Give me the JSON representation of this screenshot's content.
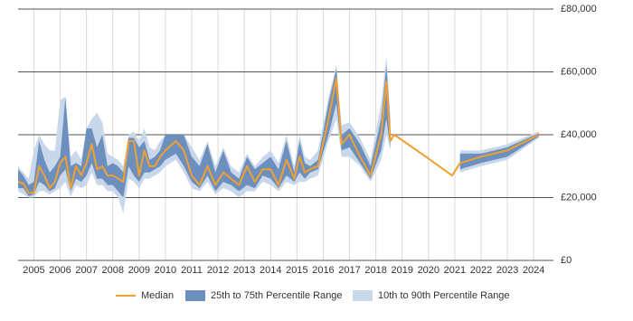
{
  "chart_data": {
    "type": "line",
    "x": [
      2004.4,
      2004.6,
      2004.8,
      2005.0,
      2005.2,
      2005.4,
      2005.6,
      2005.8,
      2006.0,
      2006.2,
      2006.4,
      2006.6,
      2006.8,
      2007.0,
      2007.2,
      2007.4,
      2007.6,
      2007.8,
      2008.0,
      2008.2,
      2008.4,
      2008.6,
      2008.8,
      2009.0,
      2009.2,
      2009.4,
      2009.6,
      2009.8,
      2010.0,
      2010.4,
      2010.7,
      2011.0,
      2011.3,
      2011.6,
      2011.9,
      2012.2,
      2012.5,
      2012.8,
      2013.1,
      2013.4,
      2013.7,
      2014.0,
      2014.3,
      2014.6,
      2014.9,
      2015.1,
      2015.3,
      2015.5,
      2015.8,
      2016.2,
      2016.5,
      2016.7,
      2017.0,
      2017.4,
      2017.8,
      2018.2,
      2018.4,
      2018.55,
      2018.7,
      2019.9,
      2020.9,
      2021.2,
      2022.0,
      2023.0,
      2024.2
    ],
    "series": [
      {
        "name": "Median",
        "color": "#f0a030",
        "values": [
          25000,
          24500,
          21500,
          21500,
          30000,
          27000,
          23000,
          25000,
          31000,
          33000,
          23000,
          30000,
          27000,
          31000,
          37000,
          29000,
          30000,
          27000,
          27000,
          26000,
          25000,
          38000,
          38000,
          27000,
          35000,
          30000,
          30000,
          33000,
          35000,
          38000,
          35000,
          27000,
          24000,
          30000,
          24000,
          28000,
          26000,
          24000,
          30000,
          25000,
          29000,
          29000,
          24000,
          32000,
          26000,
          33000,
          28000,
          29000,
          30000,
          45000,
          58000,
          37000,
          40000,
          33000,
          27000,
          40000,
          57000,
          38000,
          40000,
          33000,
          27000,
          31000,
          33000,
          35000,
          40000
        ]
      },
      {
        "name": "25th to 75th Percentile Range",
        "color": "#6d8fbe",
        "low": [
          23000,
          23000,
          20500,
          21000,
          25000,
          24000,
          22000,
          23000,
          27000,
          29000,
          22000,
          26000,
          25000,
          27000,
          31000,
          26000,
          26000,
          24000,
          24000,
          22000,
          20000,
          30000,
          27000,
          25000,
          28000,
          28000,
          29000,
          30000,
          32000,
          34000,
          30000,
          25000,
          23000,
          27000,
          22000,
          25000,
          24000,
          22000,
          24000,
          23000,
          27000,
          26000,
          23000,
          27000,
          25000,
          28000,
          26000,
          28000,
          29000,
          40000,
          50000,
          35000,
          36000,
          31000,
          26000,
          35000,
          45000,
          36000,
          null,
          null,
          null,
          29000,
          31000,
          33000,
          39500
        ],
        "high": [
          29000,
          27000,
          24000,
          25000,
          38000,
          32000,
          28000,
          30000,
          33000,
          52000,
          30000,
          31000,
          30000,
          42000,
          42000,
          36000,
          40000,
          30000,
          31000,
          30000,
          28000,
          39000,
          39000,
          36000,
          38000,
          32000,
          33000,
          35000,
          40000,
          40000,
          40000,
          33000,
          30000,
          37000,
          28000,
          35000,
          28000,
          26000,
          33000,
          29000,
          31000,
          33000,
          29000,
          38000,
          28000,
          38000,
          31000,
          30000,
          32000,
          50000,
          61000,
          40000,
          42000,
          37000,
          30000,
          45000,
          62000,
          44000,
          null,
          null,
          null,
          34000,
          34000,
          36000,
          40500
        ]
      },
      {
        "name": "10th to 90th Percentile Range",
        "color": "#c8d8ea",
        "low": [
          22000,
          21000,
          20000,
          20000,
          22000,
          22000,
          21000,
          22000,
          23000,
          25000,
          20000,
          24000,
          23000,
          24000,
          28000,
          24000,
          24000,
          22000,
          22000,
          20000,
          15000,
          26000,
          25000,
          23000,
          26000,
          26000,
          27000,
          28000,
          30000,
          32000,
          28000,
          23000,
          22000,
          25000,
          21000,
          23000,
          22000,
          20000,
          22000,
          22000,
          25000,
          24000,
          22000,
          25000,
          24000,
          25000,
          25000,
          26000,
          27000,
          38000,
          45000,
          33000,
          33000,
          30000,
          25000,
          32000,
          40000,
          35000,
          null,
          null,
          null,
          28000,
          30000,
          32000,
          39000
        ],
        "high": [
          30000,
          28000,
          26000,
          35000,
          40000,
          37000,
          35000,
          35000,
          51000,
          52000,
          33000,
          35000,
          32000,
          42000,
          45000,
          47000,
          44000,
          34000,
          33000,
          32000,
          30000,
          40000,
          41000,
          38000,
          42000,
          36000,
          35000,
          38000,
          40000,
          40000,
          40000,
          36000,
          32000,
          38000,
          30000,
          36000,
          30000,
          28000,
          34000,
          30000,
          33000,
          35000,
          31000,
          40000,
          30000,
          40000,
          33000,
          32000,
          35000,
          52000,
          62000,
          43000,
          44000,
          39000,
          32000,
          50000,
          65000,
          46000,
          null,
          null,
          null,
          35000,
          35000,
          37000,
          41000
        ]
      }
    ],
    "xlim": [
      2004.4,
      2024.75
    ],
    "xticks": [
      2005,
      2006,
      2007,
      2008,
      2009,
      2010,
      2011,
      2012,
      2013,
      2014,
      2015,
      2016,
      2017,
      2018,
      2019,
      2020,
      2021,
      2022,
      2023,
      2024
    ],
    "ylim": [
      0,
      80000
    ],
    "yticks": [
      {
        "value": 0,
        "label": "£0"
      },
      {
        "value": 20000,
        "label": "£20,000"
      },
      {
        "value": 40000,
        "label": "£40,000"
      },
      {
        "value": 60000,
        "label": "£60,000"
      },
      {
        "value": 80000,
        "label": "£80,000"
      }
    ],
    "grid": true,
    "legend": "bottom"
  }
}
